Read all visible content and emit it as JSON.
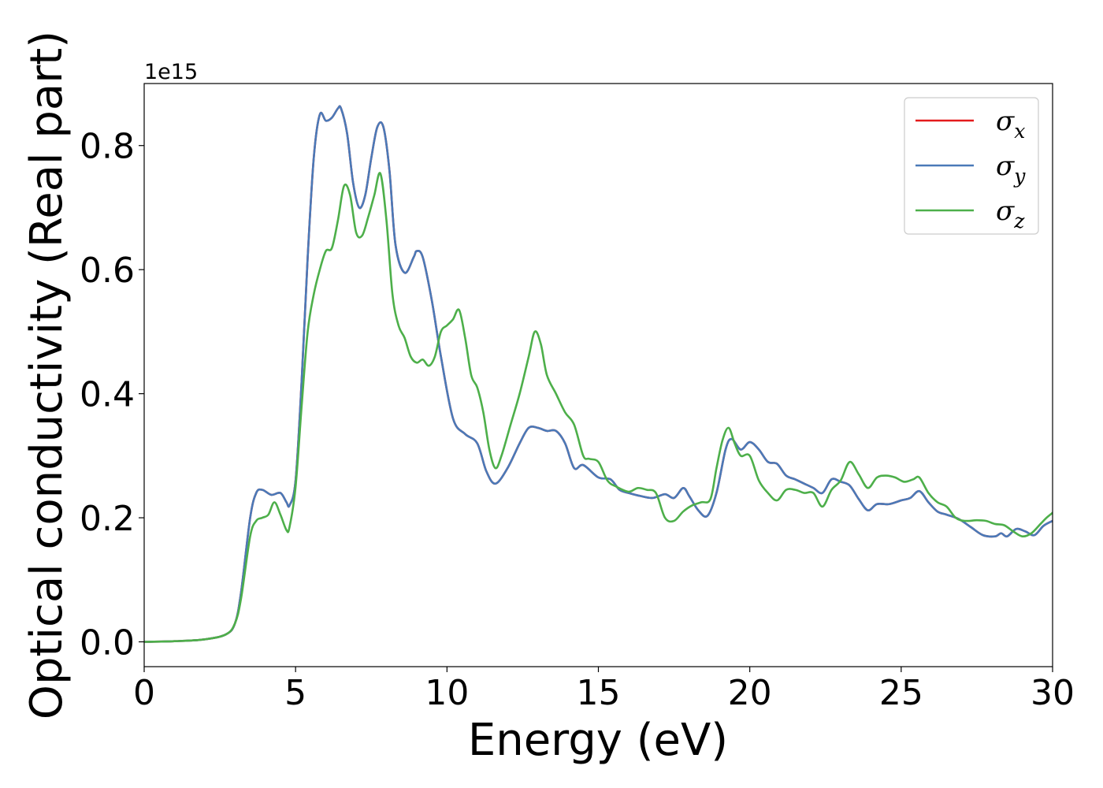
{
  "chart_data": {
    "type": "line",
    "title": "",
    "xlabel": "Energy (eV)",
    "ylabel": "Optical conductivity (Real part)",
    "y_offset_text": "1e15",
    "xlim": [
      0,
      30
    ],
    "ylim": [
      -0.04,
      0.9
    ],
    "x_ticks": [
      0,
      5,
      10,
      15,
      20,
      25,
      30
    ],
    "y_ticks": [
      0.0,
      0.2,
      0.4,
      0.6,
      0.8
    ],
    "x_tick_labels": [
      "0",
      "5",
      "10",
      "15",
      "20",
      "25",
      "30"
    ],
    "y_tick_labels": [
      "0.0",
      "0.2",
      "0.4",
      "0.6",
      "0.8"
    ],
    "grid": false,
    "legend_position": "top-right",
    "series": [
      {
        "name": "σ_x",
        "legend": {
          "base": "σ",
          "sub": "x"
        },
        "color": "#e41a1c",
        "points": [
          [
            0,
            0
          ],
          [
            1,
            0.001
          ],
          [
            2,
            0.004
          ],
          [
            2.7,
            0.012
          ],
          [
            3.0,
            0.03
          ],
          [
            3.2,
            0.08
          ],
          [
            3.5,
            0.2
          ],
          [
            3.7,
            0.24
          ],
          [
            3.9,
            0.245
          ],
          [
            4.2,
            0.237
          ],
          [
            4.5,
            0.24
          ],
          [
            4.7,
            0.225
          ],
          [
            4.8,
            0.22
          ],
          [
            5.0,
            0.26
          ],
          [
            5.2,
            0.42
          ],
          [
            5.4,
            0.62
          ],
          [
            5.6,
            0.78
          ],
          [
            5.8,
            0.85
          ],
          [
            6.0,
            0.84
          ],
          [
            6.2,
            0.845
          ],
          [
            6.4,
            0.86
          ],
          [
            6.5,
            0.86
          ],
          [
            6.7,
            0.82
          ],
          [
            6.9,
            0.74
          ],
          [
            7.1,
            0.7
          ],
          [
            7.3,
            0.72
          ],
          [
            7.5,
            0.78
          ],
          [
            7.7,
            0.83
          ],
          [
            7.9,
            0.83
          ],
          [
            8.1,
            0.76
          ],
          [
            8.3,
            0.64
          ],
          [
            8.6,
            0.595
          ],
          [
            8.9,
            0.62
          ],
          [
            9.0,
            0.63
          ],
          [
            9.2,
            0.62
          ],
          [
            9.5,
            0.55
          ],
          [
            9.8,
            0.46
          ],
          [
            10.2,
            0.36
          ],
          [
            10.6,
            0.335
          ],
          [
            11.0,
            0.32
          ],
          [
            11.3,
            0.275
          ],
          [
            11.6,
            0.255
          ],
          [
            12.0,
            0.28
          ],
          [
            12.4,
            0.32
          ],
          [
            12.7,
            0.345
          ],
          [
            13.0,
            0.345
          ],
          [
            13.3,
            0.34
          ],
          [
            13.6,
            0.34
          ],
          [
            13.9,
            0.32
          ],
          [
            14.2,
            0.28
          ],
          [
            14.5,
            0.285
          ],
          [
            15.0,
            0.265
          ],
          [
            15.4,
            0.262
          ],
          [
            15.7,
            0.245
          ],
          [
            16.0,
            0.24
          ],
          [
            16.4,
            0.235
          ],
          [
            16.8,
            0.232
          ],
          [
            17.2,
            0.238
          ],
          [
            17.5,
            0.232
          ],
          [
            17.8,
            0.248
          ],
          [
            18.0,
            0.235
          ],
          [
            18.3,
            0.212
          ],
          [
            18.6,
            0.203
          ],
          [
            18.9,
            0.24
          ],
          [
            19.2,
            0.31
          ],
          [
            19.4,
            0.327
          ],
          [
            19.7,
            0.31
          ],
          [
            20.0,
            0.322
          ],
          [
            20.3,
            0.31
          ],
          [
            20.6,
            0.29
          ],
          [
            20.9,
            0.287
          ],
          [
            21.2,
            0.268
          ],
          [
            21.5,
            0.262
          ],
          [
            21.8,
            0.255
          ],
          [
            22.1,
            0.248
          ],
          [
            22.4,
            0.24
          ],
          [
            22.7,
            0.262
          ],
          [
            23.0,
            0.258
          ],
          [
            23.3,
            0.252
          ],
          [
            23.6,
            0.23
          ],
          [
            23.9,
            0.212
          ],
          [
            24.2,
            0.222
          ],
          [
            24.6,
            0.222
          ],
          [
            25.0,
            0.228
          ],
          [
            25.3,
            0.232
          ],
          [
            25.6,
            0.243
          ],
          [
            25.9,
            0.225
          ],
          [
            26.2,
            0.21
          ],
          [
            26.5,
            0.205
          ],
          [
            26.9,
            0.198
          ],
          [
            27.3,
            0.185
          ],
          [
            27.7,
            0.172
          ],
          [
            28.1,
            0.17
          ],
          [
            28.3,
            0.175
          ],
          [
            28.5,
            0.17
          ],
          [
            28.8,
            0.182
          ],
          [
            29.1,
            0.178
          ],
          [
            29.4,
            0.172
          ],
          [
            29.7,
            0.187
          ],
          [
            30,
            0.195
          ]
        ]
      },
      {
        "name": "σ_y",
        "legend": {
          "base": "σ",
          "sub": "y"
        },
        "color": "#4a7ab8",
        "points": [
          [
            0,
            0
          ],
          [
            1,
            0.001
          ],
          [
            2,
            0.004
          ],
          [
            2.7,
            0.012
          ],
          [
            3.0,
            0.03
          ],
          [
            3.2,
            0.08
          ],
          [
            3.5,
            0.2
          ],
          [
            3.7,
            0.24
          ],
          [
            3.9,
            0.245
          ],
          [
            4.2,
            0.237
          ],
          [
            4.5,
            0.24
          ],
          [
            4.7,
            0.225
          ],
          [
            4.8,
            0.22
          ],
          [
            5.0,
            0.26
          ],
          [
            5.2,
            0.42
          ],
          [
            5.4,
            0.62
          ],
          [
            5.6,
            0.78
          ],
          [
            5.8,
            0.85
          ],
          [
            6.0,
            0.84
          ],
          [
            6.2,
            0.845
          ],
          [
            6.4,
            0.86
          ],
          [
            6.5,
            0.86
          ],
          [
            6.7,
            0.82
          ],
          [
            6.9,
            0.74
          ],
          [
            7.1,
            0.7
          ],
          [
            7.3,
            0.72
          ],
          [
            7.5,
            0.78
          ],
          [
            7.7,
            0.83
          ],
          [
            7.9,
            0.83
          ],
          [
            8.1,
            0.76
          ],
          [
            8.3,
            0.64
          ],
          [
            8.6,
            0.595
          ],
          [
            8.9,
            0.62
          ],
          [
            9.0,
            0.63
          ],
          [
            9.2,
            0.62
          ],
          [
            9.5,
            0.55
          ],
          [
            9.8,
            0.46
          ],
          [
            10.2,
            0.36
          ],
          [
            10.6,
            0.335
          ],
          [
            11.0,
            0.32
          ],
          [
            11.3,
            0.275
          ],
          [
            11.6,
            0.255
          ],
          [
            12.0,
            0.28
          ],
          [
            12.4,
            0.32
          ],
          [
            12.7,
            0.345
          ],
          [
            13.0,
            0.345
          ],
          [
            13.3,
            0.34
          ],
          [
            13.6,
            0.34
          ],
          [
            13.9,
            0.32
          ],
          [
            14.2,
            0.28
          ],
          [
            14.5,
            0.285
          ],
          [
            15.0,
            0.265
          ],
          [
            15.4,
            0.262
          ],
          [
            15.7,
            0.245
          ],
          [
            16.0,
            0.24
          ],
          [
            16.4,
            0.235
          ],
          [
            16.8,
            0.232
          ],
          [
            17.2,
            0.238
          ],
          [
            17.5,
            0.232
          ],
          [
            17.8,
            0.248
          ],
          [
            18.0,
            0.235
          ],
          [
            18.3,
            0.212
          ],
          [
            18.6,
            0.203
          ],
          [
            18.9,
            0.24
          ],
          [
            19.2,
            0.31
          ],
          [
            19.4,
            0.327
          ],
          [
            19.7,
            0.31
          ],
          [
            20.0,
            0.322
          ],
          [
            20.3,
            0.31
          ],
          [
            20.6,
            0.29
          ],
          [
            20.9,
            0.287
          ],
          [
            21.2,
            0.268
          ],
          [
            21.5,
            0.262
          ],
          [
            21.8,
            0.255
          ],
          [
            22.1,
            0.248
          ],
          [
            22.4,
            0.24
          ],
          [
            22.7,
            0.262
          ],
          [
            23.0,
            0.258
          ],
          [
            23.3,
            0.252
          ],
          [
            23.6,
            0.23
          ],
          [
            23.9,
            0.212
          ],
          [
            24.2,
            0.222
          ],
          [
            24.6,
            0.222
          ],
          [
            25.0,
            0.228
          ],
          [
            25.3,
            0.232
          ],
          [
            25.6,
            0.243
          ],
          [
            25.9,
            0.225
          ],
          [
            26.2,
            0.21
          ],
          [
            26.5,
            0.205
          ],
          [
            26.9,
            0.198
          ],
          [
            27.3,
            0.185
          ],
          [
            27.7,
            0.172
          ],
          [
            28.1,
            0.17
          ],
          [
            28.3,
            0.175
          ],
          [
            28.5,
            0.17
          ],
          [
            28.8,
            0.182
          ],
          [
            29.1,
            0.178
          ],
          [
            29.4,
            0.172
          ],
          [
            29.7,
            0.187
          ],
          [
            30,
            0.195
          ]
        ]
      },
      {
        "name": "σ_z",
        "legend": {
          "base": "σ",
          "sub": "z"
        },
        "color": "#4daf4a",
        "points": [
          [
            0,
            0
          ],
          [
            1,
            0.001
          ],
          [
            2,
            0.004
          ],
          [
            2.7,
            0.012
          ],
          [
            3.0,
            0.03
          ],
          [
            3.2,
            0.07
          ],
          [
            3.5,
            0.17
          ],
          [
            3.7,
            0.195
          ],
          [
            3.9,
            0.2
          ],
          [
            4.1,
            0.205
          ],
          [
            4.3,
            0.225
          ],
          [
            4.5,
            0.205
          ],
          [
            4.7,
            0.18
          ],
          [
            4.8,
            0.185
          ],
          [
            5.0,
            0.25
          ],
          [
            5.2,
            0.38
          ],
          [
            5.4,
            0.5
          ],
          [
            5.6,
            0.56
          ],
          [
            5.8,
            0.6
          ],
          [
            6.0,
            0.63
          ],
          [
            6.2,
            0.635
          ],
          [
            6.4,
            0.68
          ],
          [
            6.6,
            0.735
          ],
          [
            6.8,
            0.72
          ],
          [
            7.0,
            0.66
          ],
          [
            7.2,
            0.655
          ],
          [
            7.4,
            0.685
          ],
          [
            7.6,
            0.72
          ],
          [
            7.8,
            0.755
          ],
          [
            8.0,
            0.68
          ],
          [
            8.2,
            0.56
          ],
          [
            8.4,
            0.51
          ],
          [
            8.6,
            0.49
          ],
          [
            8.8,
            0.46
          ],
          [
            9.0,
            0.45
          ],
          [
            9.2,
            0.455
          ],
          [
            9.4,
            0.445
          ],
          [
            9.6,
            0.46
          ],
          [
            9.8,
            0.5
          ],
          [
            10.0,
            0.51
          ],
          [
            10.2,
            0.52
          ],
          [
            10.4,
            0.535
          ],
          [
            10.6,
            0.49
          ],
          [
            10.8,
            0.43
          ],
          [
            11.0,
            0.41
          ],
          [
            11.2,
            0.37
          ],
          [
            11.4,
            0.31
          ],
          [
            11.6,
            0.28
          ],
          [
            11.8,
            0.3
          ],
          [
            12.1,
            0.35
          ],
          [
            12.4,
            0.4
          ],
          [
            12.7,
            0.46
          ],
          [
            12.9,
            0.5
          ],
          [
            13.1,
            0.48
          ],
          [
            13.3,
            0.43
          ],
          [
            13.6,
            0.4
          ],
          [
            13.9,
            0.37
          ],
          [
            14.2,
            0.35
          ],
          [
            14.5,
            0.3
          ],
          [
            14.7,
            0.295
          ],
          [
            15.0,
            0.29
          ],
          [
            15.3,
            0.26
          ],
          [
            15.6,
            0.25
          ],
          [
            16.0,
            0.242
          ],
          [
            16.3,
            0.248
          ],
          [
            16.6,
            0.245
          ],
          [
            16.9,
            0.24
          ],
          [
            17.2,
            0.2
          ],
          [
            17.5,
            0.195
          ],
          [
            17.8,
            0.21
          ],
          [
            18.1,
            0.22
          ],
          [
            18.4,
            0.225
          ],
          [
            18.7,
            0.23
          ],
          [
            18.9,
            0.28
          ],
          [
            19.1,
            0.325
          ],
          [
            19.3,
            0.345
          ],
          [
            19.5,
            0.32
          ],
          [
            19.7,
            0.3
          ],
          [
            20.0,
            0.3
          ],
          [
            20.3,
            0.26
          ],
          [
            20.6,
            0.24
          ],
          [
            20.9,
            0.228
          ],
          [
            21.2,
            0.245
          ],
          [
            21.5,
            0.245
          ],
          [
            21.8,
            0.24
          ],
          [
            22.1,
            0.24
          ],
          [
            22.4,
            0.218
          ],
          [
            22.7,
            0.245
          ],
          [
            23.0,
            0.26
          ],
          [
            23.3,
            0.29
          ],
          [
            23.6,
            0.27
          ],
          [
            23.9,
            0.248
          ],
          [
            24.2,
            0.265
          ],
          [
            24.5,
            0.268
          ],
          [
            24.8,
            0.265
          ],
          [
            25.1,
            0.258
          ],
          [
            25.4,
            0.262
          ],
          [
            25.6,
            0.265
          ],
          [
            25.9,
            0.24
          ],
          [
            26.2,
            0.225
          ],
          [
            26.5,
            0.218
          ],
          [
            26.8,
            0.2
          ],
          [
            27.1,
            0.195
          ],
          [
            27.5,
            0.196
          ],
          [
            27.8,
            0.195
          ],
          [
            28.1,
            0.19
          ],
          [
            28.4,
            0.188
          ],
          [
            28.7,
            0.178
          ],
          [
            29.0,
            0.17
          ],
          [
            29.3,
            0.175
          ],
          [
            29.6,
            0.19
          ],
          [
            29.8,
            0.2
          ],
          [
            30,
            0.208
          ]
        ]
      }
    ]
  }
}
